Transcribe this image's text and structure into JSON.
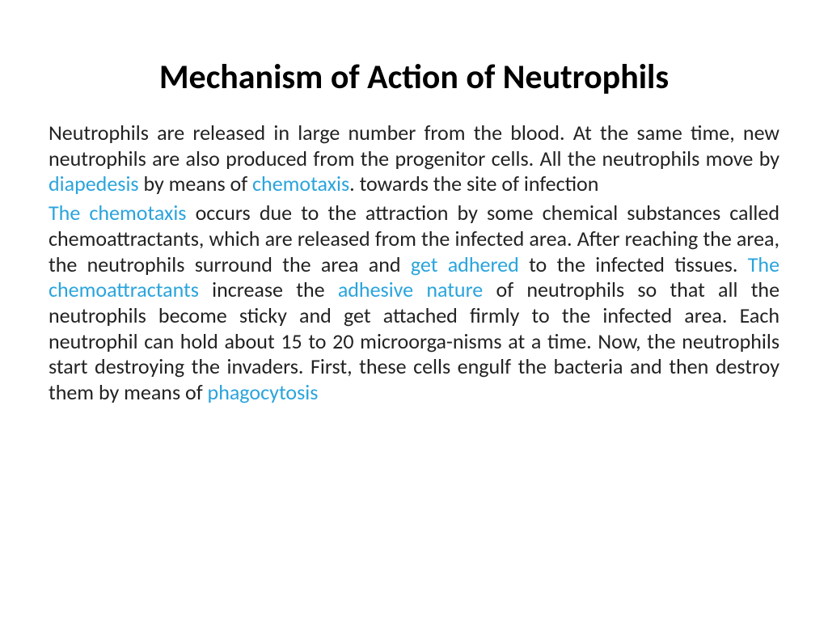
{
  "slide": {
    "title": "Mechanism of Action of Neutrophils",
    "title_fontsize": 42,
    "title_color": "#000000",
    "body_fontsize": 26,
    "body_color": "#222222",
    "highlight_color": "#2aa4dc",
    "background_color": "#ffffff",
    "p1": {
      "t1": "Neutrophils are released in large number from the blood. At the same time, new neutrophils are also produced from the progenitor cells. All the neutrophils move by ",
      "h1": "diapedesis",
      "t2": " by means of ",
      "h2": "chemotaxis",
      "t3": ". towards the site of infection"
    },
    "p2": {
      "h1": "The chemotaxis",
      "t1": " occurs due to the attraction by some chemical substances called chemoattractants, which are released from the infected area. After reaching the area, the neutrophils surround the area and ",
      "h2": "get adhered",
      "t2": " to the infected tissues. ",
      "h3": "The chemoattractants",
      "t3": " increase the ",
      "h4": "adhesive nature",
      "t4": " of neutrophils so that all the neutrophils become sticky and get attached firmly to the infected area. Each neutrophil can hold about 15 to 20 microorga-nisms at a time. Now, the neutrophils start destroying the invaders. First, these cells engulf the bacteria and then destroy them by means of ",
      "h5": " phagocytosis"
    }
  }
}
